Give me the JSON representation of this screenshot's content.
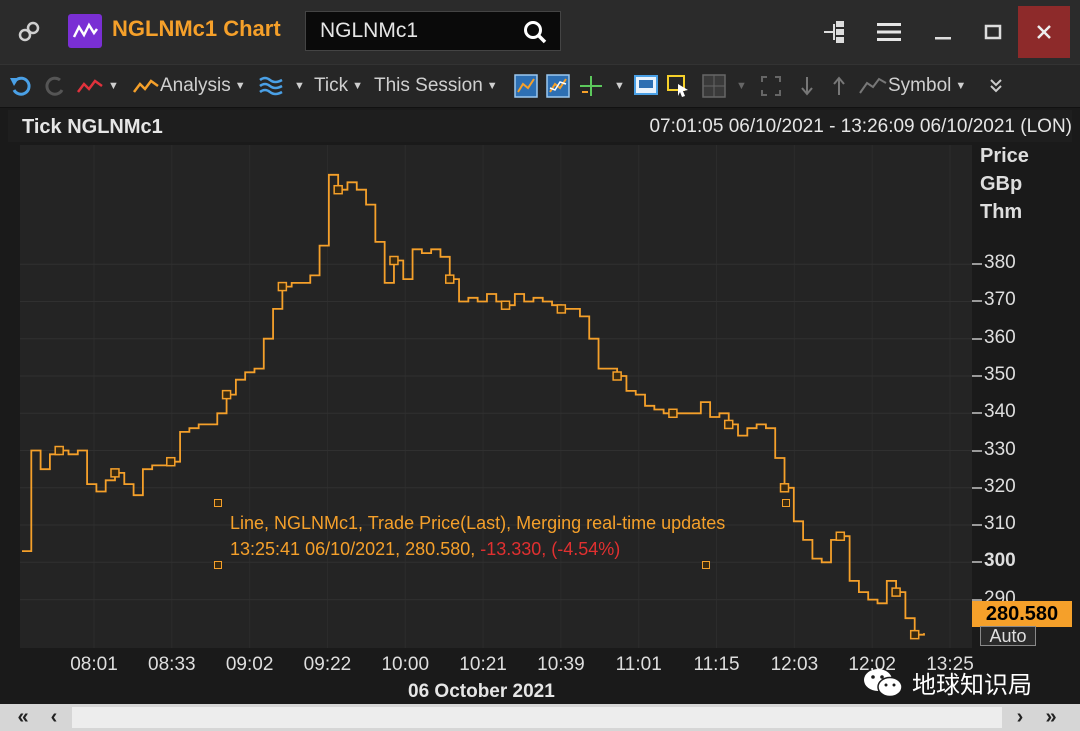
{
  "window": {
    "title": "NGLNMc1 Chart",
    "search_value": "NGLNMc1",
    "icons": [
      "link-icon",
      "chart-app-icon",
      "search-icon",
      "hierarchy-icon",
      "menu-icon",
      "minimize-icon",
      "maximize-icon",
      "close-icon"
    ]
  },
  "toolbar": {
    "analysis_label": "Analysis",
    "tick_label": "Tick",
    "session_label": "This Session",
    "symbol_label": "Symbol"
  },
  "chart_header": {
    "title": "Tick NGLNMc1",
    "range": "07:01:05 06/10/2021 - 13:26:09 06/10/2021 (LON)"
  },
  "tooltip": {
    "line1": "Line, NGLNMc1, Trade Price(Last), Merging real-time updates",
    "line2_prefix": "13:25:41 06/10/2021, 280.580, ",
    "line2_change": "-13.330, (-4.54%)"
  },
  "last_price": "280.580",
  "auto_label": "Auto",
  "watermark": "地球知识局",
  "colors": {
    "series": "#f5a02a",
    "change_negative": "#e03030",
    "app_icon": "#7a2fd4"
  },
  "chart_data": {
    "type": "line",
    "title": "Tick NGLNMc1",
    "xlabel": "06 October 2021",
    "ylabel": [
      "Price",
      "GBp",
      "Thm"
    ],
    "yticks": [
      "380",
      "370",
      "360",
      "350",
      "340",
      "330",
      "320",
      "310",
      "300",
      "290"
    ],
    "xticks": [
      "08:01",
      "08:33",
      "09:02",
      "09:22",
      "10:00",
      "10:21",
      "10:39",
      "11:01",
      "11:15",
      "12:03",
      "12:02",
      "13:25"
    ],
    "ylim": [
      277,
      412
    ],
    "grid": true,
    "series": [
      {
        "values": [
          303,
          330,
          325,
          329,
          330,
          329,
          330,
          321,
          319,
          322,
          324,
          321,
          318,
          325,
          326,
          326,
          327,
          335,
          336,
          337,
          337,
          340,
          345,
          349,
          351,
          352,
          360,
          368,
          374,
          375,
          375,
          377,
          385,
          404,
          400,
          402,
          400,
          396,
          386,
          375,
          381,
          376,
          384,
          383,
          384,
          382,
          376,
          370,
          371,
          370,
          372,
          370,
          369,
          372,
          370,
          371,
          370,
          369,
          368,
          368,
          366,
          360,
          352,
          352,
          350,
          346,
          345,
          342,
          341,
          340,
          340,
          340,
          340,
          343,
          339,
          340,
          337,
          334,
          336,
          337,
          336,
          328,
          320,
          311,
          306,
          301,
          300,
          306,
          307,
          295,
          292,
          290,
          289,
          295,
          292,
          285,
          280.58,
          281
        ]
      }
    ]
  }
}
